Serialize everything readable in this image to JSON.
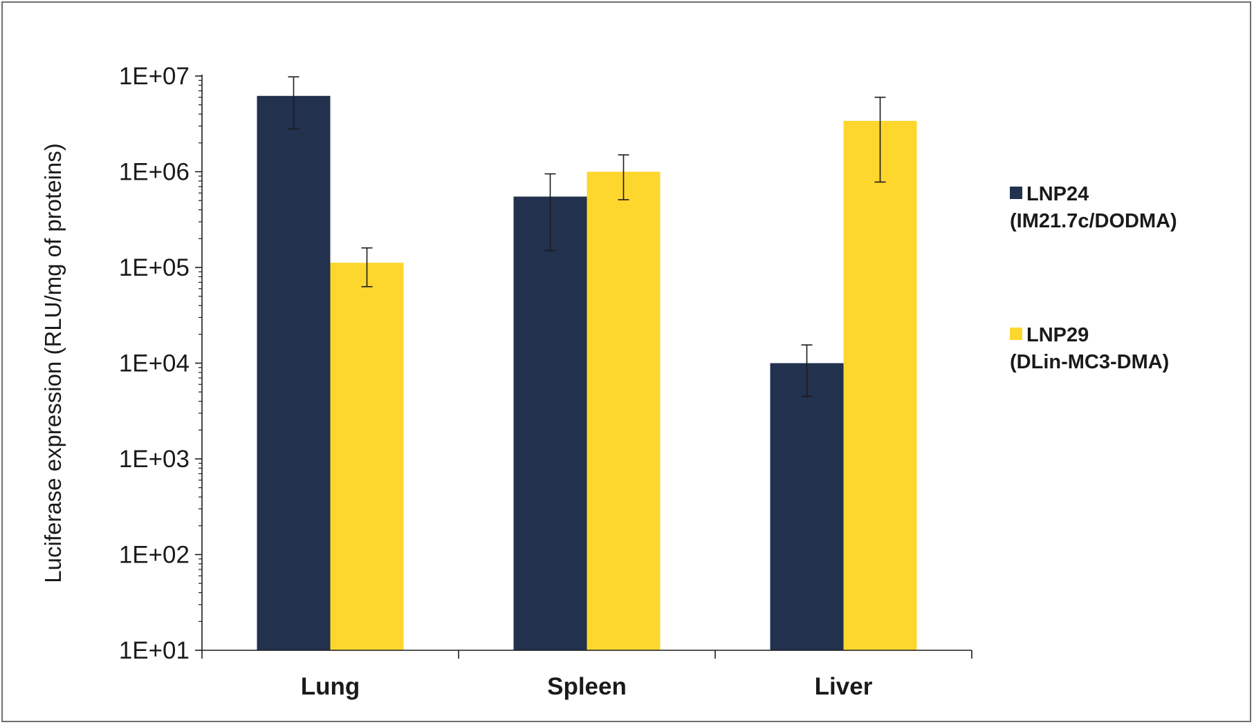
{
  "chart_data": {
    "type": "bar",
    "title": "",
    "xlabel": "",
    "ylabel": "Luciferase expression (RLU/mg of proteins)",
    "yscale": "log",
    "ylim": [
      10,
      10000000
    ],
    "yticks": [
      10,
      100,
      1000,
      10000,
      100000,
      1000000,
      10000000
    ],
    "ytick_labels": [
      "1E+01",
      "1E+02",
      "1E+03",
      "1E+04",
      "1E+05",
      "1E+06",
      "1E+07"
    ],
    "categories": [
      "Lung",
      "Spleen",
      "Liver"
    ],
    "series": [
      {
        "name": "LNP24",
        "name_detail": "(IM21.7c/DODMA)",
        "color": "#22314e",
        "values": [
          6200000,
          550000,
          10000
        ],
        "err_low": [
          2800000,
          150000,
          4500
        ],
        "err_high": [
          9800000,
          950000,
          15500
        ]
      },
      {
        "name": "LNP29",
        "name_detail": "(DLin-MC3-DMA)",
        "color": "#fdd72e",
        "values": [
          112000,
          1000000,
          3400000
        ],
        "err_low": [
          63000,
          510000,
          780000
        ],
        "err_high": [
          160000,
          1500000,
          6000000
        ]
      }
    ],
    "grid": false,
    "legend_position": "right"
  }
}
